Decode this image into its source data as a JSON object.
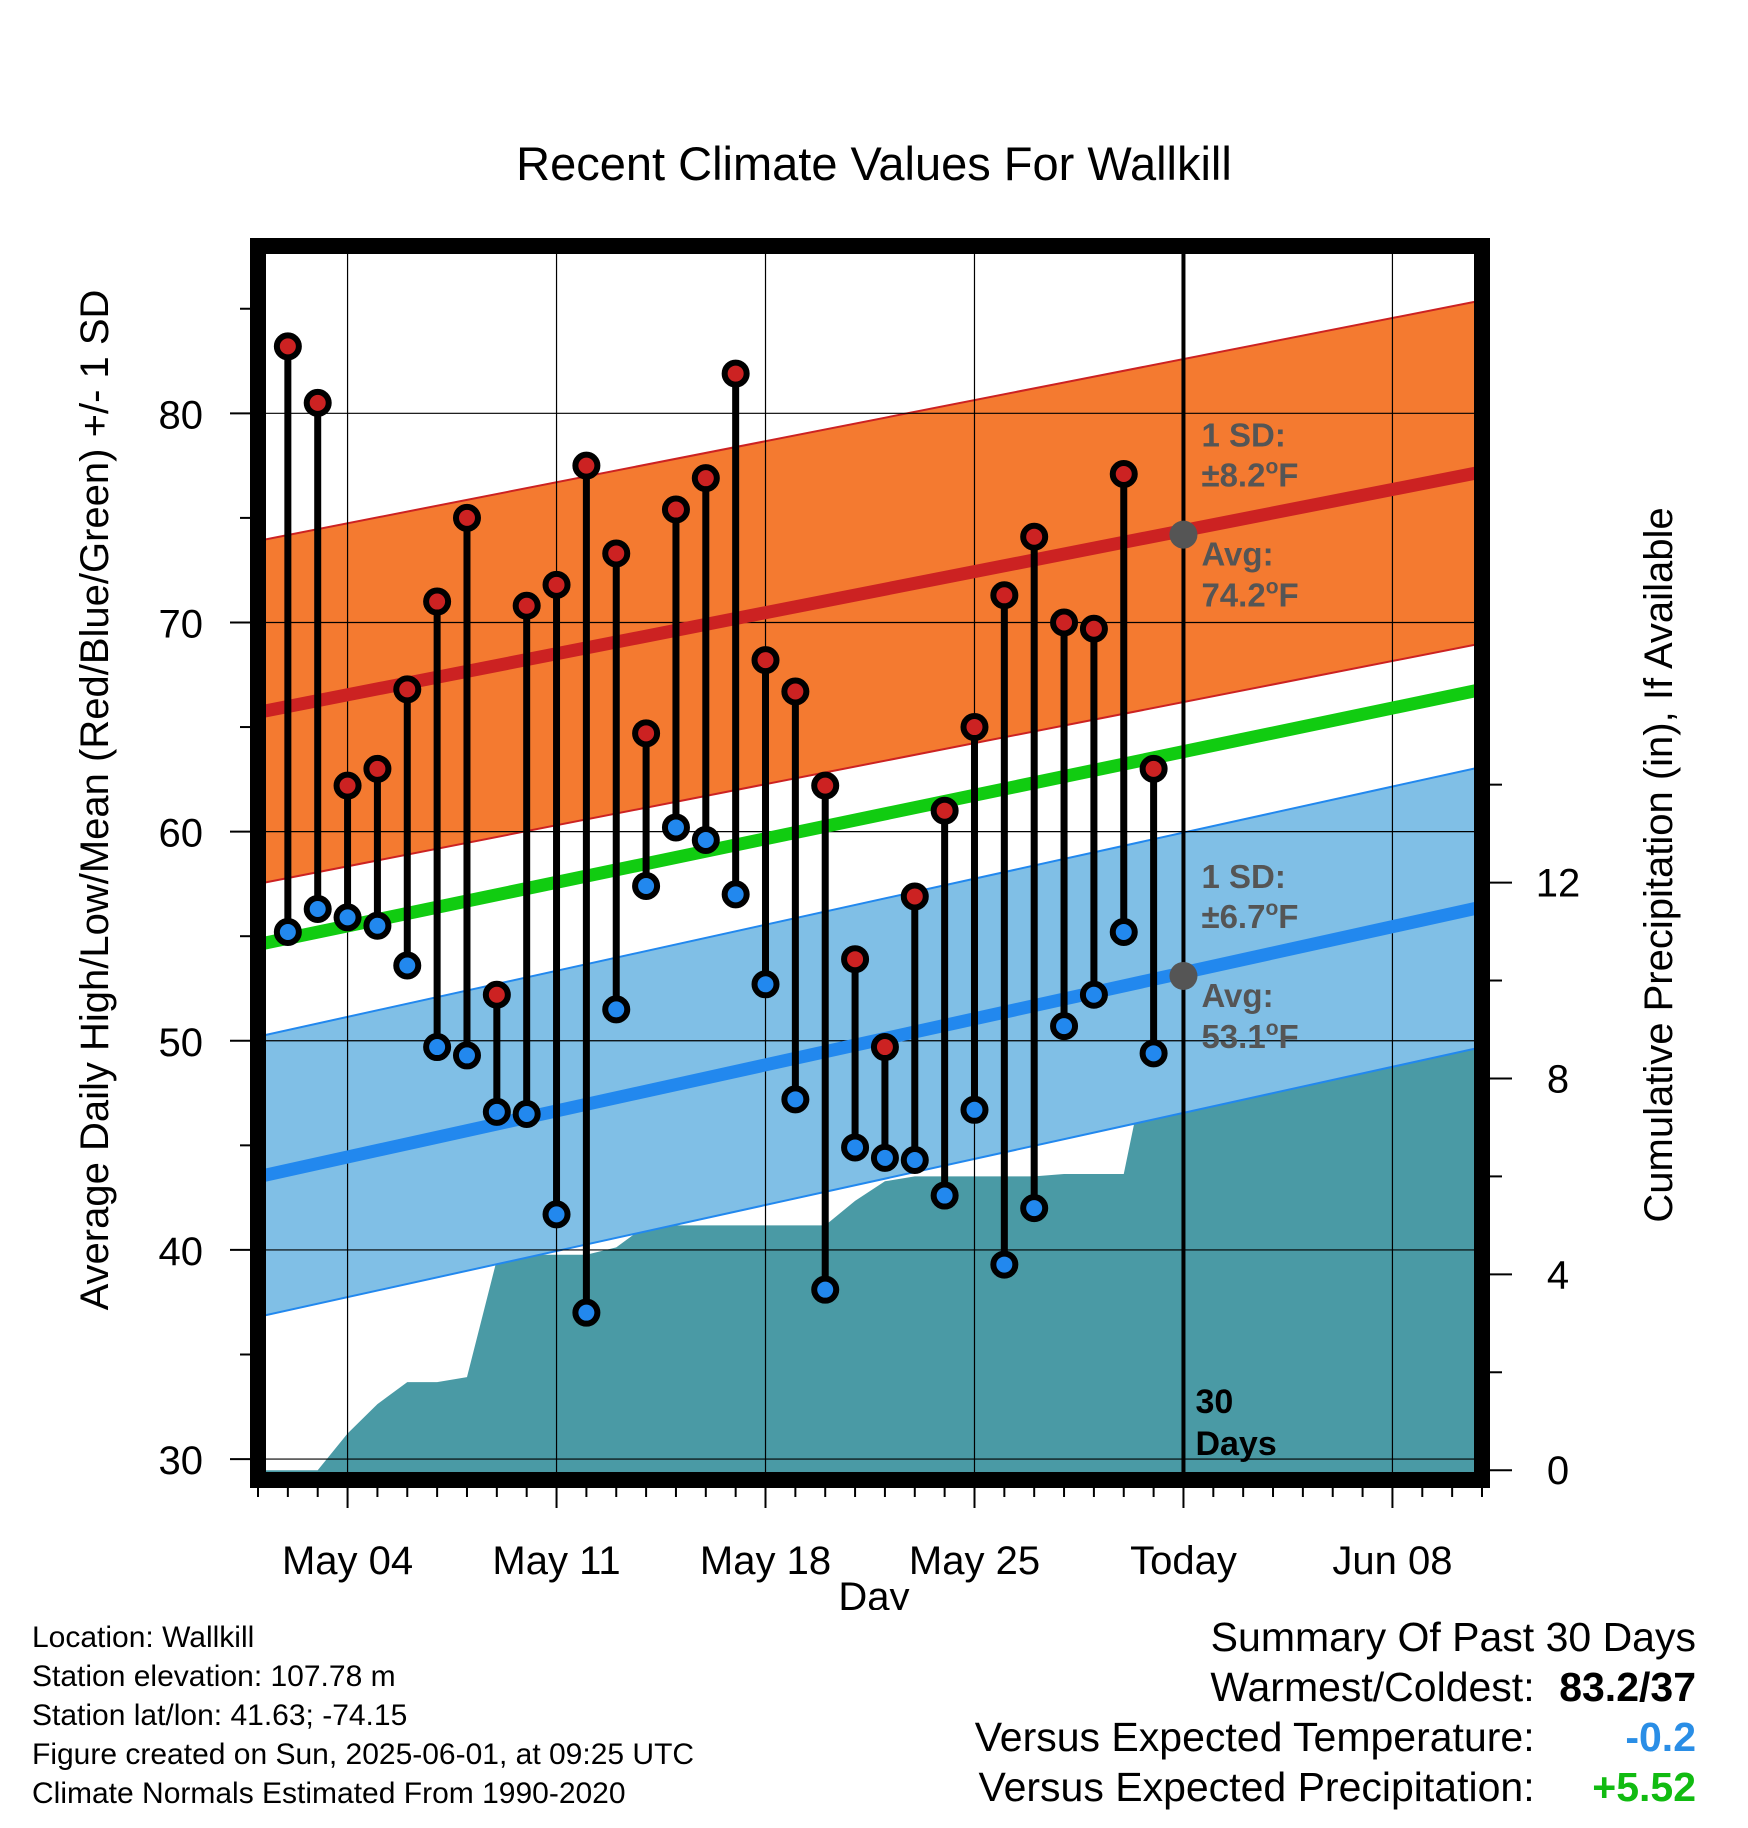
{
  "chart_data": {
    "type": "line",
    "title": "Recent Climate Values For Wallkill",
    "xlabel": "Day",
    "ylabel": "Average Daily High/Low/Mean (Red/Blue/Green) +/- 1 SD",
    "y2label": "Cumulative Precipitation (in), If Available",
    "xlim": [
      "2025-05-01",
      "2025-06-11"
    ],
    "ylim": [
      29,
      88
    ],
    "y2lim": [
      -0.2,
      25
    ],
    "x_ticks": [
      "May 04",
      "May 11",
      "May 18",
      "May 25",
      "Today",
      "Jun 08"
    ],
    "x_tick_dates": [
      "2025-05-04",
      "2025-05-11",
      "2025-05-18",
      "2025-05-25",
      "2025-06-01",
      "2025-06-08"
    ],
    "y_ticks": [
      30,
      40,
      50,
      60,
      70,
      80
    ],
    "y2_ticks": [
      0,
      4,
      8,
      12
    ],
    "grid": true,
    "today_line": "2025-06-01",
    "today_label": "30\nDays",
    "dates": [
      "2025-05-02",
      "2025-05-03",
      "2025-05-04",
      "2025-05-05",
      "2025-05-06",
      "2025-05-07",
      "2025-05-08",
      "2025-05-09",
      "2025-05-10",
      "2025-05-11",
      "2025-05-12",
      "2025-05-13",
      "2025-05-14",
      "2025-05-15",
      "2025-05-16",
      "2025-05-17",
      "2025-05-18",
      "2025-05-19",
      "2025-05-20",
      "2025-05-21",
      "2025-05-22",
      "2025-05-23",
      "2025-05-24",
      "2025-05-25",
      "2025-05-26",
      "2025-05-27",
      "2025-05-28",
      "2025-05-29",
      "2025-05-30",
      "2025-05-31"
    ],
    "series": [
      {
        "name": "High",
        "color": "#cc2222",
        "values": [
          83.2,
          80.5,
          62.2,
          63.0,
          66.8,
          71.0,
          75.0,
          52.2,
          70.8,
          71.8,
          77.5,
          73.3,
          64.7,
          75.4,
          76.9,
          81.9,
          68.2,
          66.7,
          62.2,
          53.9,
          49.7,
          56.9,
          61.0,
          65.0,
          71.3,
          74.1,
          70.0,
          69.7,
          77.1,
          63.0
        ]
      },
      {
        "name": "Low",
        "color": "#2288ee",
        "values": [
          55.2,
          56.3,
          55.9,
          55.5,
          53.6,
          49.7,
          49.3,
          46.6,
          46.5,
          41.7,
          37.0,
          51.5,
          57.4,
          60.2,
          59.6,
          57.0,
          52.7,
          47.2,
          38.1,
          44.9,
          44.4,
          44.3,
          42.6,
          46.7,
          39.3,
          42.0,
          50.7,
          52.2,
          55.2,
          49.4
        ]
      }
    ],
    "normals": {
      "dates": [
        "2025-05-01",
        "2025-06-11"
      ],
      "high_avg": [
        65.7,
        77.2
      ],
      "low_avg": [
        43.5,
        56.4
      ],
      "mean_avg": [
        54.6,
        66.8
      ],
      "high_sd": 8.2,
      "low_sd": 6.7
    },
    "annotations": [
      {
        "date": "2025-06-01",
        "y": 74.2,
        "sd_label": "1 SD:",
        "sd_value": "±8.2",
        "avg_label": "Avg:",
        "avg_value": "74.2",
        "unit": "°F"
      },
      {
        "date": "2025-06-01",
        "y": 53.1,
        "sd_label": "1 SD:",
        "sd_value": "±6.7",
        "avg_label": "Avg:",
        "avg_value": "53.1",
        "unit": "°F"
      }
    ],
    "precip_cumulative": {
      "dates": [
        "2025-05-01",
        "2025-05-02",
        "2025-05-03",
        "2025-05-04",
        "2025-05-05",
        "2025-05-06",
        "2025-05-07",
        "2025-05-08",
        "2025-05-09",
        "2025-05-10",
        "2025-05-11",
        "2025-05-12",
        "2025-05-13",
        "2025-05-14",
        "2025-05-15",
        "2025-05-16",
        "2025-05-17",
        "2025-05-18",
        "2025-05-19",
        "2025-05-20",
        "2025-05-21",
        "2025-05-22",
        "2025-05-23",
        "2025-05-24",
        "2025-05-25",
        "2025-05-26",
        "2025-05-27",
        "2025-05-28",
        "2025-05-29",
        "2025-05-30",
        "2025-05-31",
        "2025-06-01",
        "2025-06-11"
      ],
      "values": [
        0,
        0,
        0,
        0.75,
        1.35,
        1.8,
        1.8,
        1.9,
        4.3,
        4.4,
        4.4,
        4.4,
        4.55,
        5.0,
        5.0,
        5.0,
        5.0,
        5.0,
        5.0,
        5.0,
        5.5,
        5.9,
        6.0,
        6.0,
        6.0,
        6.0,
        6.0,
        6.05,
        6.05,
        6.05,
        9.0,
        9.0,
        9.0
      ]
    },
    "colors": {
      "high_band": "#f47a30",
      "high_line": "#cc2222",
      "low_band": "#80bfe6",
      "low_line": "#2288ee",
      "mean_line": "#11cc11",
      "precip": "#4a9aa5",
      "annotation": "#555555"
    }
  },
  "info": {
    "location": "Location: Wallkill",
    "elevation": "Station elevation: 107.78 m",
    "latlon": "Station lat/lon: 41.63; -74.15",
    "created": "Figure created on Sun, 2025-06-01, at 09:25 UTC",
    "normals": "Climate Normals Estimated From 1990-2020"
  },
  "summary": {
    "title": "Summary Of Past 30 Days",
    "warmest_label": "Warmest/Coldest:",
    "warmest_value": "83.2/37",
    "temp_label": "Versus Expected Temperature:",
    "temp_value": "-0.2",
    "temp_color": "#2a8ee6",
    "precip_label": "Versus Expected Precipitation:",
    "precip_value": "+5.52",
    "precip_color": "#11bb11"
  }
}
